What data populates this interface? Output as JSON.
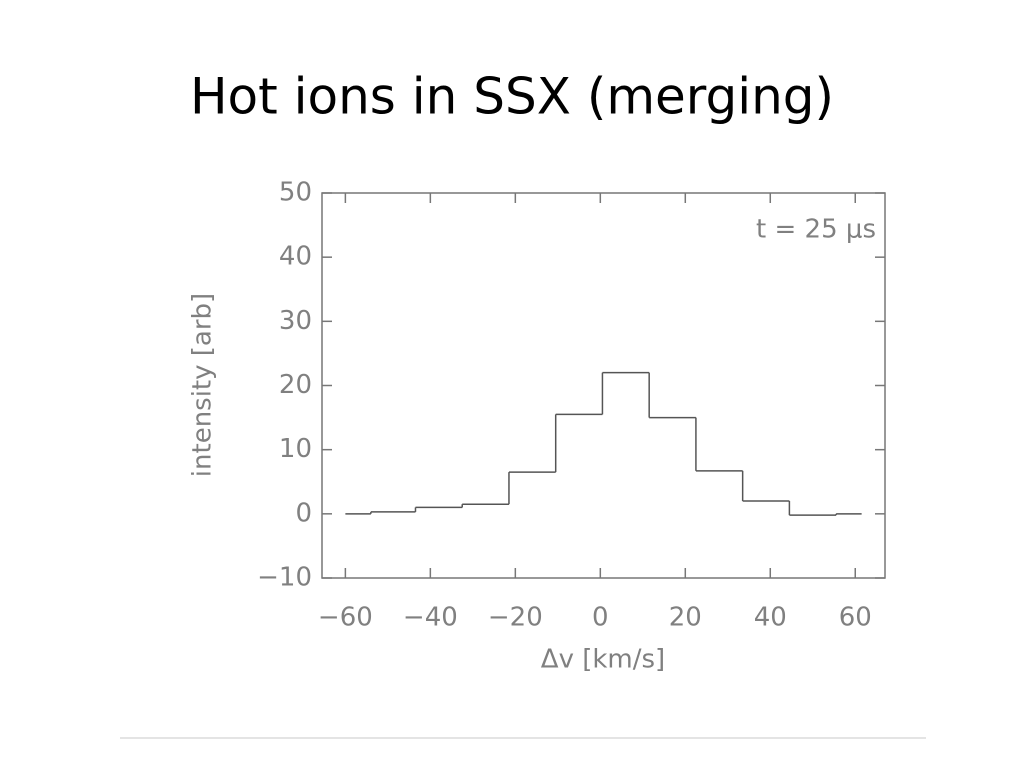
{
  "chart_data": {
    "type": "histogram",
    "title": "Hot ions in SSX (merging)",
    "annotation": "t =  25 μs",
    "x_label": "Δv [km/s]",
    "y_label": "intensity [arb]",
    "bins": [
      -60,
      -54,
      -43.5,
      -32.5,
      -21.5,
      -10.5,
      0.5,
      11.5,
      22.5,
      33.5,
      44.5,
      55.5,
      61.5
    ],
    "values": [
      0,
      0.3,
      1,
      1.5,
      6.5,
      15.5,
      22,
      15,
      6.7,
      2,
      -0.2,
      0
    ],
    "color": "#555555",
    "xlim": [
      -65.5,
      67
    ],
    "ylim": [
      -10,
      50
    ],
    "xticks": [
      {
        "value": -60,
        "label": "−60"
      },
      {
        "value": -40,
        "label": "−40"
      },
      {
        "value": -20,
        "label": "−20"
      },
      0,
      20,
      40,
      60
    ],
    "yticks": [
      {
        "value": -10,
        "label": "−10"
      },
      0,
      10,
      20,
      30,
      40,
      50
    ]
  }
}
